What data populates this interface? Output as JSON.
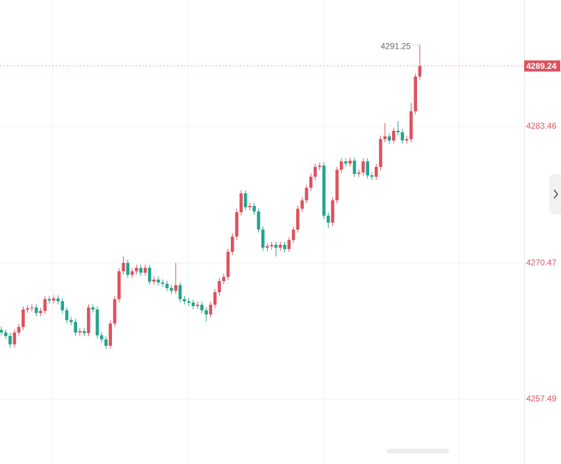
{
  "chart_data": {
    "type": "candlestick",
    "up_color": "#dd525e",
    "down_color": "#22a58c",
    "grid": true,
    "ylim": [
      4251.33,
      4295.52
    ],
    "yticks": [
      4257.49,
      4270.47,
      4283.46
    ],
    "last_price": 4289.24,
    "max_annotation": 4291.25,
    "open": [
      4264.1,
      4263.85,
      4263.52,
      4262.73,
      4263.85,
      4264.38,
      4266.04,
      4266.17,
      4266.24,
      4265.71,
      4265.91,
      4267.03,
      4266.9,
      4267.1,
      4266.83,
      4265.97,
      4265.04,
      4264.85,
      4263.85,
      4263.98,
      4263.79,
      4266.24,
      4266.04,
      4263.59,
      4263.19,
      4262.59,
      4264.71,
      4267.03,
      4269.68,
      4270.48,
      4269.35,
      4269.68,
      4270.01,
      4269.55,
      4270.01,
      4268.69,
      4268.89,
      4268.62,
      4268.49,
      4268.09,
      4267.83,
      4268.36,
      4267.03,
      4266.83,
      4266.7,
      4266.37,
      4266.5,
      4265.97,
      4265.57,
      4266.5,
      4267.69,
      4268.75,
      4269.15,
      4271.54,
      4272.99,
      4275.31,
      4277.1,
      4275.78,
      4275.91,
      4275.38,
      4273.66,
      4271.93,
      4272.07,
      4272.2,
      4271.93,
      4272.2,
      4271.8,
      4272.66,
      4273.66,
      4275.64,
      4276.44,
      4277.63,
      4278.69,
      4279.62,
      4279.75,
      4274.98,
      4274.32,
      4276.44,
      4279.35,
      4280.15,
      4279.95,
      4280.22,
      4278.96,
      4279.09,
      4280.15,
      4278.82,
      4278.69,
      4279.62,
      4282.27,
      4282.53,
      4282.14,
      4283.06,
      4282.93,
      4282.14,
      4282.27,
      4284.92,
      4288.23
    ],
    "high": [
      4264.4,
      4264.15,
      4263.82,
      4264.15,
      4264.68,
      4266.34,
      4266.47,
      4266.54,
      4266.54,
      4266.21,
      4267.33,
      4267.33,
      4267.4,
      4267.4,
      4267.13,
      4266.27,
      4265.34,
      4265.15,
      4264.28,
      4264.28,
      4266.54,
      4266.54,
      4266.34,
      4263.89,
      4263.49,
      4265.01,
      4267.33,
      4269.98,
      4271.1,
      4270.78,
      4269.98,
      4270.31,
      4270.31,
      4270.31,
      4270.31,
      4269.19,
      4269.19,
      4268.92,
      4268.79,
      4268.39,
      4270.5,
      4268.66,
      4267.33,
      4267.13,
      4267.0,
      4266.8,
      4266.8,
      4266.27,
      4266.8,
      4267.99,
      4269.05,
      4269.45,
      4271.84,
      4273.29,
      4275.61,
      4277.4,
      4277.4,
      4276.21,
      4276.21,
      4275.68,
      4273.96,
      4272.37,
      4272.5,
      4272.5,
      4272.5,
      4272.5,
      4272.96,
      4273.96,
      4275.94,
      4276.74,
      4277.93,
      4278.99,
      4279.92,
      4280.05,
      4280.05,
      4275.28,
      4276.74,
      4279.65,
      4280.45,
      4280.45,
      4280.52,
      4280.52,
      4279.39,
      4280.45,
      4280.45,
      4279.12,
      4279.92,
      4282.57,
      4283.8,
      4282.83,
      4283.36,
      4284.0,
      4283.23,
      4282.57,
      4285.7,
      4288.53,
      4291.25
    ],
    "low": [
      4263.55,
      4263.22,
      4262.43,
      4262.43,
      4263.55,
      4264.08,
      4265.74,
      4265.87,
      4265.41,
      4265.41,
      4265.61,
      4266.6,
      4266.6,
      4266.53,
      4265.67,
      4264.74,
      4264.55,
      4263.55,
      4263.55,
      4263.49,
      4263.49,
      4265.74,
      4263.29,
      4262.89,
      4262.29,
      4262.29,
      4264.41,
      4266.73,
      4269.38,
      4269.05,
      4269.05,
      4269.38,
      4269.25,
      4269.25,
      4268.39,
      4268.39,
      4268.32,
      4268.19,
      4267.79,
      4267.53,
      4267.53,
      4266.73,
      4266.53,
      4266.4,
      4266.07,
      4266.07,
      4265.67,
      4264.9,
      4265.27,
      4266.2,
      4267.39,
      4268.45,
      4268.85,
      4271.24,
      4272.69,
      4275.01,
      4275.48,
      4275.48,
      4275.08,
      4273.36,
      4271.63,
      4271.63,
      4271.77,
      4271.1,
      4271.63,
      4271.5,
      4271.5,
      4272.36,
      4273.36,
      4275.34,
      4276.14,
      4277.33,
      4278.39,
      4279.32,
      4274.68,
      4273.8,
      4274.02,
      4276.14,
      4279.05,
      4279.65,
      4279.65,
      4278.66,
      4278.66,
      4278.79,
      4278.52,
      4278.39,
      4278.39,
      4279.32,
      4281.97,
      4281.84,
      4281.84,
      4282.63,
      4281.84,
      4281.84,
      4281.97,
      4284.62,
      4287.93
    ],
    "close": [
      4263.85,
      4263.52,
      4262.73,
      4263.85,
      4264.38,
      4266.04,
      4266.17,
      4266.24,
      4265.71,
      4265.91,
      4267.03,
      4266.9,
      4267.1,
      4266.83,
      4265.97,
      4265.04,
      4264.85,
      4263.85,
      4263.98,
      4263.79,
      4266.24,
      4266.04,
      4263.59,
      4263.19,
      4262.59,
      4264.71,
      4267.03,
      4269.68,
      4270.48,
      4269.35,
      4269.68,
      4270.01,
      4269.55,
      4270.01,
      4268.69,
      4268.89,
      4268.62,
      4268.49,
      4268.09,
      4267.83,
      4268.36,
      4267.03,
      4266.83,
      4266.7,
      4266.37,
      4266.5,
      4265.97,
      4265.57,
      4266.5,
      4267.69,
      4268.75,
      4269.15,
      4271.54,
      4272.99,
      4275.31,
      4277.1,
      4275.78,
      4275.91,
      4275.38,
      4273.66,
      4271.93,
      4272.07,
      4272.2,
      4271.93,
      4272.2,
      4271.8,
      4272.66,
      4273.66,
      4275.64,
      4276.44,
      4277.63,
      4278.69,
      4279.62,
      4279.75,
      4274.98,
      4274.32,
      4276.44,
      4279.35,
      4280.15,
      4279.95,
      4280.22,
      4278.96,
      4279.09,
      4280.15,
      4278.82,
      4278.69,
      4279.62,
      4282.27,
      4282.53,
      4282.14,
      4283.06,
      4282.93,
      4282.14,
      4282.27,
      4284.92,
      4288.23,
      4289.24
    ]
  }
}
